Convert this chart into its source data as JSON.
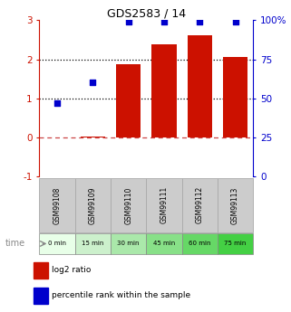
{
  "title": "GDS2583 / 14",
  "samples": [
    "GSM99108",
    "GSM99109",
    "GSM99110",
    "GSM99111",
    "GSM99112",
    "GSM99113"
  ],
  "time_labels": [
    "0 min",
    "15 min",
    "30 min",
    "45 min",
    "60 min",
    "75 min"
  ],
  "time_colors": [
    "#e8ffe8",
    "#ccf0cc",
    "#aae8aa",
    "#88e088",
    "#66d866",
    "#44d044"
  ],
  "log2_ratio": [
    0.0,
    0.02,
    1.88,
    2.38,
    2.62,
    2.05
  ],
  "percentile_rank_pct": [
    47,
    60,
    99,
    99,
    99,
    99
  ],
  "bar_color": "#cc1100",
  "dot_color": "#0000cc",
  "ylim_left": [
    -1,
    3
  ],
  "ylim_right": [
    0,
    100
  ],
  "yticks_left": [
    -1,
    0,
    1,
    2,
    3
  ],
  "yticks_right": [
    0,
    25,
    50,
    75,
    100
  ],
  "sample_box_color": "#cccccc",
  "sample_box_edge": "#aaaaaa",
  "legend_log2_color": "#cc1100",
  "legend_pct_color": "#0000cc",
  "right_axis_color": "#0000cc",
  "left_axis_color": "#cc1100"
}
